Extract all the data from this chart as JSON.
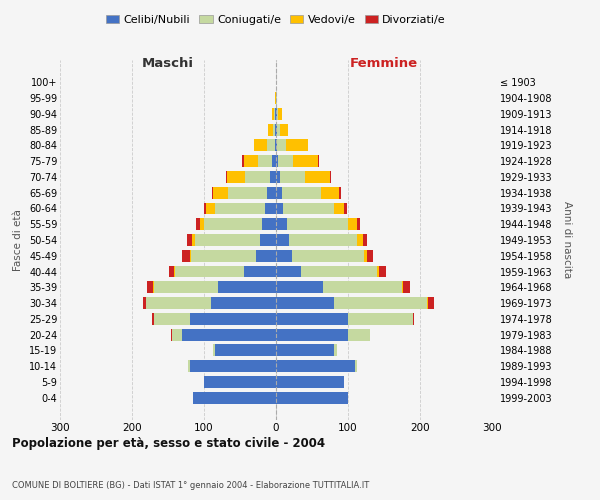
{
  "age_groups": [
    "0-4",
    "5-9",
    "10-14",
    "15-19",
    "20-24",
    "25-29",
    "30-34",
    "35-39",
    "40-44",
    "45-49",
    "50-54",
    "55-59",
    "60-64",
    "65-69",
    "70-74",
    "75-79",
    "80-84",
    "85-89",
    "90-94",
    "95-99",
    "100+"
  ],
  "birth_years": [
    "1999-2003",
    "1994-1998",
    "1989-1993",
    "1984-1988",
    "1979-1983",
    "1974-1978",
    "1969-1973",
    "1964-1968",
    "1959-1963",
    "1954-1958",
    "1949-1953",
    "1944-1948",
    "1939-1943",
    "1934-1938",
    "1929-1933",
    "1924-1928",
    "1919-1923",
    "1914-1918",
    "1909-1913",
    "1904-1908",
    "≤ 1903"
  ],
  "maschi": {
    "celibi": [
      115,
      100,
      120,
      85,
      130,
      120,
      90,
      80,
      45,
      28,
      22,
      20,
      15,
      12,
      8,
      5,
      2,
      1,
      1,
      0,
      0
    ],
    "coniugati": [
      0,
      0,
      2,
      2,
      15,
      50,
      90,
      90,
      95,
      90,
      90,
      80,
      70,
      55,
      35,
      20,
      10,
      3,
      2,
      0,
      0
    ],
    "vedovi": [
      0,
      0,
      0,
      0,
      0,
      0,
      0,
      1,
      1,
      2,
      4,
      6,
      12,
      20,
      25,
      20,
      18,
      7,
      3,
      1,
      0
    ],
    "divorziati": [
      0,
      0,
      0,
      0,
      1,
      2,
      5,
      8,
      8,
      10,
      8,
      5,
      3,
      2,
      2,
      2,
      0,
      0,
      0,
      0,
      0
    ]
  },
  "femmine": {
    "nubili": [
      100,
      95,
      110,
      80,
      100,
      100,
      80,
      65,
      35,
      22,
      18,
      15,
      10,
      8,
      5,
      3,
      2,
      1,
      1,
      0,
      0
    ],
    "coniugate": [
      0,
      0,
      2,
      5,
      30,
      90,
      130,
      110,
      105,
      100,
      95,
      85,
      70,
      55,
      35,
      20,
      12,
      4,
      2,
      1,
      0
    ],
    "vedove": [
      0,
      0,
      0,
      0,
      0,
      0,
      1,
      1,
      3,
      5,
      8,
      12,
      15,
      25,
      35,
      35,
      30,
      12,
      5,
      1,
      0
    ],
    "divorziate": [
      0,
      0,
      0,
      0,
      1,
      2,
      8,
      10,
      10,
      8,
      6,
      5,
      3,
      2,
      2,
      2,
      0,
      0,
      0,
      0,
      0
    ]
  },
  "colors": {
    "celibi": "#4472c4",
    "coniugati": "#c5d9a0",
    "vedovi": "#ffc000",
    "divorziati": "#cc2222"
  },
  "title": "Popolazione per età, sesso e stato civile - 2004",
  "subtitle": "COMUNE DI BOLTIERE (BG) - Dati ISTAT 1° gennaio 2004 - Elaborazione TUTTITALIA.IT",
  "legend_labels": [
    "Celibi/Nubili",
    "Coniugati/e",
    "Vedovi/e",
    "Divorziati/e"
  ],
  "label_maschi": "Maschi",
  "label_femmine": "Femmine",
  "ylabel_left": "Fasce di età",
  "ylabel_right": "Anni di nascita",
  "xlim": 300,
  "bg_color": "#f5f5f5",
  "grid_color": "#cccccc",
  "bar_height": 0.75
}
